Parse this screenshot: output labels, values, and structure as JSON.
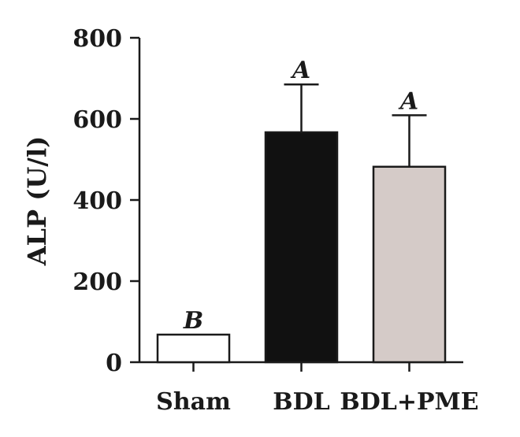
{
  "chart_data": {
    "type": "bar",
    "title": "",
    "xlabel": "",
    "ylabel": "ALP (U/l)",
    "ylim": [
      0,
      800
    ],
    "yticks": [
      0,
      200,
      400,
      600,
      800
    ],
    "categories": [
      "Sham",
      "BDL",
      "BDL+PME"
    ],
    "values": [
      68,
      567,
      482
    ],
    "errors": [
      0,
      118,
      127
    ],
    "significance": [
      "B",
      "A",
      "A"
    ],
    "bar_colors": [
      "#ffffff",
      "#111111",
      "#d5cbc8"
    ]
  }
}
